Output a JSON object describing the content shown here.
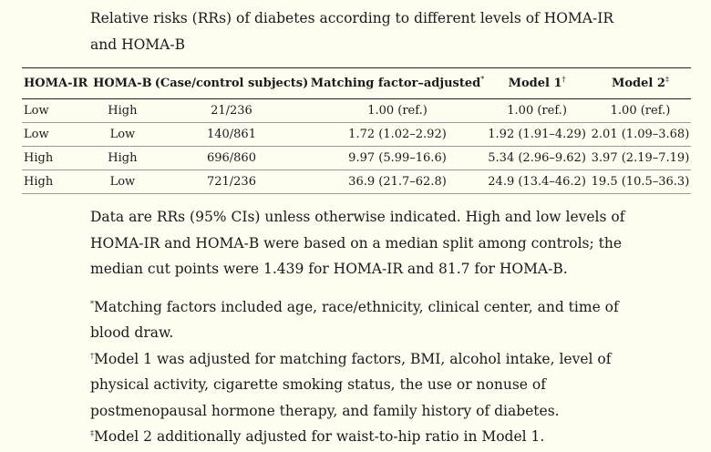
{
  "caption": "Relative risks (RRs) of diabetes according to different levels of HOMA-IR and HOMA-B",
  "table": {
    "headers": {
      "homa_ir": "HOMA-IR",
      "homa_b": "HOMA-B",
      "cases": "(Case/control subjects)",
      "matching": "Matching factor–adjusted",
      "matching_mark": "*",
      "model1": "Model 1",
      "model1_mark": "†",
      "model2": "Model 2",
      "model2_mark": "‡"
    },
    "rows": [
      {
        "homa_ir": "Low",
        "homa_b": "High",
        "cases": "21/236",
        "matching": "1.00 (ref.)",
        "model1": "1.00 (ref.)",
        "model2": "1.00 (ref.)"
      },
      {
        "homa_ir": "Low",
        "homa_b": "Low",
        "cases": "140/861",
        "matching": "1.72 (1.02–2.92)",
        "model1": "1.92 (1.91–4.29)",
        "model2": "2.01 (1.09–3.68)"
      },
      {
        "homa_ir": "High",
        "homa_b": "High",
        "cases": "696/860",
        "matching": "9.97 (5.99–16.6)",
        "model1": "5.34 (2.96–9.62)",
        "model2": "3.97 (2.19–7.19)"
      },
      {
        "homa_ir": "High",
        "homa_b": "Low",
        "cases": "721/236",
        "matching": "36.9 (21.7–62.8)",
        "model1": "24.9 (13.4–46.2)",
        "model2": "19.5 (10.5–36.3)"
      }
    ]
  },
  "notes": {
    "main": "Data are RRs (95% CIs) unless otherwise indicated. High and low levels of HOMA-IR and HOMA-B were based on a median split among controls; the median cut points were 1.439 for HOMA-IR and 81.7 for HOMA-B.",
    "fn1_mark": "*",
    "fn1": "Matching factors included age, race/ethnicity, clinical center, and time of blood draw.",
    "fn2_mark": "†",
    "fn2": "Model 1 was adjusted for matching factors, BMI, alcohol intake, level of physical activity, cigarette smoking status, the use or nonuse of postmenopausal hormone therapy, and family history of diabetes.",
    "fn3_mark": "‡",
    "fn3": "Model 2 additionally adjusted for waist-to-hip ratio in Model 1."
  }
}
